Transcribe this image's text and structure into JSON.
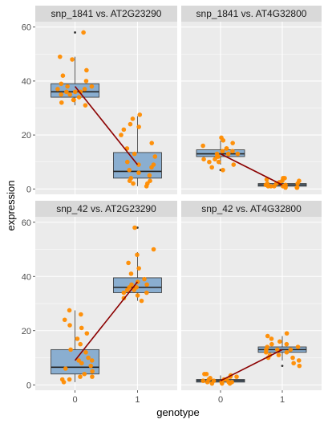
{
  "chart_data": {
    "type": "boxplot-facets",
    "xlabel": "genotype",
    "ylabel": "expression",
    "x_categories": [
      "0",
      "1"
    ],
    "ylim": [
      -2,
      62
    ],
    "y_ticks": [
      0,
      20,
      40,
      60
    ],
    "grid": true,
    "colors": {
      "panel_bg": "#ebebeb",
      "grid": "#ffffff",
      "strip_bg": "#d9d9d9",
      "box_fill": "#8aaed0",
      "box_line": "#333333",
      "point": "#ff8c00",
      "trend": "#8b0000"
    },
    "panels": [
      {
        "title": "snp_1841 vs. AT2G23290",
        "boxes": [
          {
            "x": "0",
            "min": 31,
            "q1": 34,
            "median": 36,
            "q3": 39,
            "max": 49,
            "outliers": [
              58
            ]
          },
          {
            "x": "1",
            "min": 1,
            "q1": 4,
            "median": 6.5,
            "q3": 13.5,
            "max": 27,
            "outliers": []
          }
        ],
        "trend": [
          38,
          9
        ],
        "points": [
          {
            "x": 0,
            "y": [
              58,
              49,
              48,
              44,
              42,
              40,
              39,
              38,
              38,
              37,
              37,
              36,
              36,
              36,
              35,
              35,
              34,
              33,
              33,
              32,
              31
            ]
          },
          {
            "x": 1,
            "y": [
              27.5,
              26,
              24,
              23,
              22,
              20,
              17,
              15,
              13,
              12,
              10,
              9,
              9,
              8,
              7,
              6,
              5,
              4,
              3,
              3,
              2,
              2,
              1
            ]
          }
        ]
      },
      {
        "title": "snp_1841 vs. AT4G32800",
        "boxes": [
          {
            "x": "0",
            "min": 9,
            "q1": 12,
            "median": 13,
            "q3": 14.5,
            "max": 18,
            "outliers": [
              7
            ]
          },
          {
            "x": "1",
            "min": 0.5,
            "q1": 1,
            "median": 1.5,
            "q3": 2,
            "max": 3.5,
            "outliers": []
          }
        ],
        "trend": [
          13,
          1.5
        ],
        "points": [
          {
            "x": 0,
            "y": [
              19,
              18,
              17,
              16,
              15,
              15,
              14,
              14,
              13,
              13,
              13,
              12,
              12,
              12,
              11,
              11,
              10,
              10,
              9,
              8,
              7
            ]
          },
          {
            "x": 1,
            "y": [
              4,
              4,
              3.5,
              3,
              3,
              2.5,
              2,
              2,
              2,
              1.5,
              1.5,
              1,
              1,
              1,
              1,
              0.5,
              0.5,
              0.5
            ]
          }
        ]
      },
      {
        "title": "snp_42 vs. AT2G23290",
        "boxes": [
          {
            "x": "0",
            "min": 1,
            "q1": 4,
            "median": 6.5,
            "q3": 13,
            "max": 27.5,
            "outliers": []
          },
          {
            "x": "1",
            "min": 31,
            "q1": 34,
            "median": 36,
            "q3": 39.5,
            "max": 49,
            "outliers": [
              58
            ]
          }
        ],
        "trend": [
          9,
          38
        ],
        "points": [
          {
            "x": 0,
            "y": [
              27.5,
              26,
              24,
              22,
              21,
              19,
              17,
              15,
              13,
              12,
              10,
              9,
              9,
              8,
              7,
              6,
              5,
              4,
              3,
              3,
              2,
              2,
              1
            ]
          },
          {
            "x": 1,
            "y": [
              58,
              50,
              48,
              45,
              43,
              41,
              39,
              38,
              37,
              37,
              36,
              36,
              35,
              35,
              34,
              34,
              33,
              32,
              31
            ]
          }
        ]
      },
      {
        "title": "snp_42 vs. AT4G32800",
        "boxes": [
          {
            "x": "0",
            "min": 0.5,
            "q1": 1,
            "median": 1.5,
            "q3": 2,
            "max": 3.5,
            "outliers": []
          },
          {
            "x": "1",
            "min": 9,
            "q1": 12,
            "median": 13,
            "q3": 14,
            "max": 18,
            "outliers": [
              7
            ]
          }
        ],
        "trend": [
          1.5,
          13
        ],
        "points": [
          {
            "x": 0,
            "y": [
              4,
              4,
              3.5,
              3,
              3,
              2.5,
              2,
              2,
              2,
              1.5,
              1.5,
              1,
              1,
              1,
              1,
              0.5,
              0.5,
              0.5
            ]
          },
          {
            "x": 1,
            "y": [
              19,
              18,
              17,
              16,
              15,
              15,
              14,
              14,
              13,
              13,
              13,
              12,
              12,
              11,
              11,
              10,
              10,
              9,
              8,
              7
            ]
          }
        ]
      }
    ]
  }
}
